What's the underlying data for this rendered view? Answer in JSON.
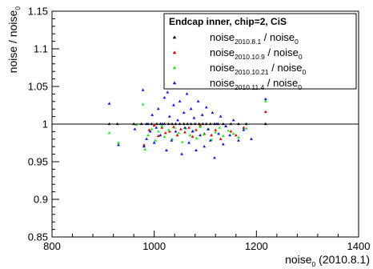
{
  "chart_data": {
    "type": "scatter",
    "xlim": [
      800,
      1400
    ],
    "ylim": [
      0.85,
      1.15
    ],
    "x_ticks": [
      800,
      1000,
      1200,
      1400
    ],
    "x_tick_labels": [
      "800",
      "1000",
      "1200",
      "1400"
    ],
    "y_ticks": [
      0.85,
      0.9,
      0.95,
      1.0,
      1.05,
      1.1,
      1.15
    ],
    "y_tick_labels": [
      "0.85",
      "0.9",
      "0.95",
      "1",
      "1.05",
      "1.1",
      "1.15"
    ],
    "grid": false,
    "reference_line_y": 1.0,
    "xlabel": {
      "base": "noise",
      "sub": "0",
      "suffix": " (2010.8.1)"
    },
    "ylabel": {
      "base": "noise / noise",
      "sub": "0"
    },
    "legend": {
      "position": "top-right",
      "title": "Endcap inner, chip=2, CiS",
      "entries": [
        {
          "base": "noise",
          "sub": "2010.8.1",
          "mid": " / noise",
          "sub2": "0",
          "color": "#000000"
        },
        {
          "base": "noise",
          "sub": "2010.10.9",
          "mid": " / noise",
          "sub2": "0",
          "color": "#e00000"
        },
        {
          "base": "noise",
          "sub": "2010.10.21",
          "mid": " / noise",
          "sub2": "0",
          "color": "#22e622"
        },
        {
          "base": "noise",
          "sub": "2010.11.4",
          "mid": " / noise",
          "sub2": "0",
          "color": "#1010e0"
        }
      ]
    },
    "series": [
      {
        "color": "#000000",
        "points": [
          [
            912,
            1.0
          ],
          [
            928,
            1.0
          ],
          [
            960,
            1.0
          ],
          [
            975,
            1.0
          ],
          [
            985,
            1.0
          ],
          [
            995,
            1.0
          ],
          [
            1005,
            1.0
          ],
          [
            1012,
            1.0
          ],
          [
            1020,
            1.0
          ],
          [
            1028,
            1.0
          ],
          [
            1035,
            1.0
          ],
          [
            1042,
            1.0
          ],
          [
            1050,
            1.0
          ],
          [
            1058,
            1.0
          ],
          [
            1065,
            1.0
          ],
          [
            1072,
            1.0
          ],
          [
            1080,
            1.0
          ],
          [
            1088,
            1.0
          ],
          [
            1095,
            1.0
          ],
          [
            1102,
            1.0
          ],
          [
            1110,
            1.0
          ],
          [
            1118,
            1.0
          ],
          [
            1125,
            1.0
          ],
          [
            1135,
            1.0
          ],
          [
            1150,
            1.0
          ],
          [
            1165,
            1.0
          ],
          [
            1180,
            1.0
          ],
          [
            1218,
            1.0
          ]
        ]
      },
      {
        "color": "#e00000",
        "points": [
          [
            980,
            0.972
          ],
          [
            990,
            0.992
          ],
          [
            1000,
            0.998
          ],
          [
            1008,
            0.984
          ],
          [
            1015,
            0.995
          ],
          [
            1022,
            0.988
          ],
          [
            1030,
            0.99
          ],
          [
            1038,
            0.996
          ],
          [
            1045,
            0.985
          ],
          [
            1052,
            0.993
          ],
          [
            1060,
            0.989
          ],
          [
            1068,
            0.995
          ],
          [
            1075,
            0.983
          ],
          [
            1082,
            0.992
          ],
          [
            1090,
            0.998
          ],
          [
            1098,
            0.987
          ],
          [
            1105,
            0.993
          ],
          [
            1112,
            0.985
          ],
          [
            1120,
            0.992
          ],
          [
            1130,
            0.98
          ],
          [
            1140,
            0.997
          ],
          [
            1150,
            0.99
          ],
          [
            1160,
            0.985
          ],
          [
            1175,
            0.995
          ],
          [
            1218,
            1.016
          ]
        ]
      },
      {
        "color": "#22e622",
        "points": [
          [
            912,
            0.988
          ],
          [
            930,
            0.975
          ],
          [
            965,
            0.999
          ],
          [
            978,
            1.026
          ],
          [
            982,
            0.966
          ],
          [
            988,
            0.985
          ],
          [
            995,
            0.993
          ],
          [
            1002,
            0.978
          ],
          [
            1008,
            0.99
          ],
          [
            1015,
            0.997
          ],
          [
            1020,
            0.983
          ],
          [
            1028,
            0.992
          ],
          [
            1035,
            0.98
          ],
          [
            1040,
            0.995
          ],
          [
            1048,
            0.988
          ],
          [
            1055,
            0.976
          ],
          [
            1062,
            0.994
          ],
          [
            1070,
            0.985
          ],
          [
            1076,
            0.991
          ],
          [
            1083,
            0.981
          ],
          [
            1090,
            0.996
          ],
          [
            1097,
            0.986
          ],
          [
            1105,
            0.993
          ],
          [
            1112,
            0.979
          ],
          [
            1120,
            0.989
          ],
          [
            1128,
            0.995
          ],
          [
            1135,
            0.984
          ],
          [
            1145,
            0.991
          ],
          [
            1155,
            0.987
          ],
          [
            1165,
            0.982
          ],
          [
            1180,
            0.994
          ],
          [
            1218,
            1.03
          ]
        ]
      },
      {
        "color": "#1010e0",
        "points": [
          [
            912,
            1.027
          ],
          [
            930,
            0.972
          ],
          [
            962,
            0.993
          ],
          [
            978,
            1.045
          ],
          [
            980,
            0.97
          ],
          [
            985,
            0.98
          ],
          [
            988,
            1.0
          ],
          [
            992,
            0.99
          ],
          [
            996,
            1.012
          ],
          [
            1000,
            0.975
          ],
          [
            1004,
            0.995
          ],
          [
            1008,
            1.02
          ],
          [
            1012,
            0.985
          ],
          [
            1016,
            1.0
          ],
          [
            1020,
            1.035
          ],
          [
            1024,
            0.965
          ],
          [
            1026,
            1.042
          ],
          [
            1030,
            1.01
          ],
          [
            1034,
            0.978
          ],
          [
            1038,
            1.025
          ],
          [
            1042,
            0.99
          ],
          [
            1046,
            1.005
          ],
          [
            1050,
            1.03
          ],
          [
            1054,
            0.96
          ],
          [
            1058,
            1.015
          ],
          [
            1060,
            0.995
          ],
          [
            1064,
            1.04
          ],
          [
            1068,
            0.975
          ],
          [
            1072,
            1.02
          ],
          [
            1075,
            0.99
          ],
          [
            1078,
            1.008
          ],
          [
            1082,
            0.965
          ],
          [
            1086,
            1.03
          ],
          [
            1090,
            0.985
          ],
          [
            1094,
            1.012
          ],
          [
            1098,
            0.97
          ],
          [
            1102,
            1.022
          ],
          [
            1106,
            0.993
          ],
          [
            1110,
            0.978
          ],
          [
            1114,
            1.015
          ],
          [
            1118,
            0.955
          ],
          [
            1122,
            1.0
          ],
          [
            1126,
            0.987
          ],
          [
            1130,
            1.01
          ],
          [
            1135,
            0.973
          ],
          [
            1140,
            0.997
          ],
          [
            1148,
            0.985
          ],
          [
            1155,
            1.005
          ],
          [
            1165,
            0.978
          ],
          [
            1175,
            0.992
          ],
          [
            1190,
            0.98
          ],
          [
            1218,
            1.033
          ]
        ]
      }
    ]
  }
}
